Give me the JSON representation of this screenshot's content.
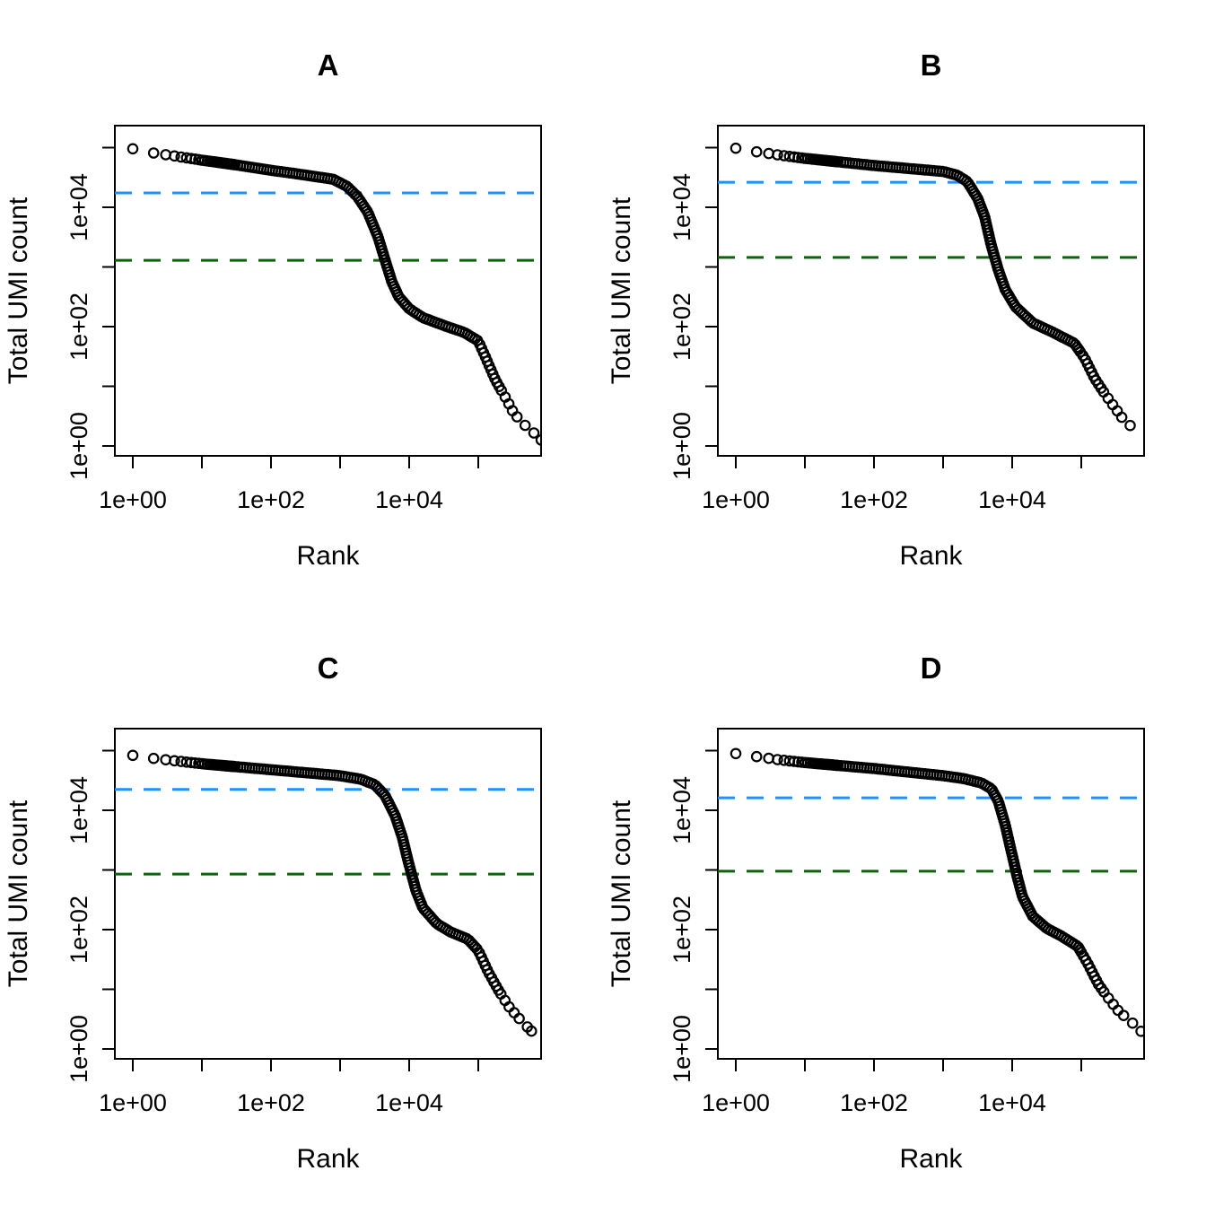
{
  "figure": {
    "background": "#FFFFFF",
    "marker": "open-circle",
    "marker_color": "#000000",
    "knee_color": "#1E90FF",
    "inflection_color": "#0B640B"
  },
  "chart_data": [
    {
      "type": "scatter",
      "title": "A",
      "xlabel": "Rank",
      "ylabel": "Total UMI count",
      "x_scale": "log10",
      "y_scale": "log10",
      "x_ticks": [
        1,
        10,
        100,
        1000,
        10000,
        100000
      ],
      "y_ticks": [
        1,
        10,
        100,
        1000,
        10000,
        100000
      ],
      "x_tick_labels": [
        "1e+00",
        "1e+02",
        "1e+04"
      ],
      "y_tick_labels": [
        "1e+00",
        "1e+02",
        "1e+04"
      ],
      "x_range_log10": [
        -0.26,
        5.91
      ],
      "y_range_log10": [
        -0.17,
        5.37
      ],
      "grid": false,
      "knee_line": {
        "style": "dashed",
        "color": "#1E90FF",
        "value": 17400
      },
      "inflection_line": {
        "style": "dashed",
        "color": "#0B640B",
        "value": 1290
      },
      "curve_log10_points": [
        [
          0,
          4.98
        ],
        [
          0.3,
          4.91
        ],
        [
          0.6,
          4.86
        ],
        [
          1,
          4.79
        ],
        [
          1.5,
          4.71
        ],
        [
          2,
          4.62
        ],
        [
          2.5,
          4.54
        ],
        [
          2.9,
          4.47
        ],
        [
          3.1,
          4.35
        ],
        [
          3.25,
          4.18
        ],
        [
          3.4,
          3.92
        ],
        [
          3.55,
          3.5
        ],
        [
          3.65,
          3.12
        ],
        [
          3.75,
          2.75
        ],
        [
          3.85,
          2.5
        ],
        [
          4,
          2.3
        ],
        [
          4.2,
          2.15
        ],
        [
          4.5,
          2.02
        ],
        [
          4.8,
          1.9
        ],
        [
          5,
          1.76
        ],
        [
          5.1,
          1.5
        ],
        [
          5.25,
          1.1
        ],
        [
          5.4,
          0.8
        ],
        [
          5.5,
          0.58
        ],
        [
          5.62,
          0.4
        ],
        [
          5.75,
          0.28
        ],
        [
          5.91,
          0.1
        ]
      ]
    },
    {
      "type": "scatter",
      "title": "B",
      "xlabel": "Rank",
      "ylabel": "Total UMI count",
      "x_scale": "log10",
      "y_scale": "log10",
      "x_ticks": [
        1,
        10,
        100,
        1000,
        10000,
        100000
      ],
      "y_ticks": [
        1,
        10,
        100,
        1000,
        10000,
        100000
      ],
      "x_tick_labels": [
        "1e+00",
        "1e+02",
        "1e+04"
      ],
      "y_tick_labels": [
        "1e+00",
        "1e+02",
        "1e+04"
      ],
      "x_range_log10": [
        -0.26,
        5.91
      ],
      "y_range_log10": [
        -0.17,
        5.37
      ],
      "grid": false,
      "knee_line": {
        "style": "dashed",
        "color": "#1E90FF",
        "value": 26300
      },
      "inflection_line": {
        "style": "dashed",
        "color": "#0B640B",
        "value": 1445
      },
      "curve_log10_points": [
        [
          0,
          4.99
        ],
        [
          0.3,
          4.93
        ],
        [
          0.6,
          4.88
        ],
        [
          1,
          4.82
        ],
        [
          1.5,
          4.76
        ],
        [
          2,
          4.7
        ],
        [
          2.5,
          4.65
        ],
        [
          3,
          4.6
        ],
        [
          3.2,
          4.54
        ],
        [
          3.35,
          4.43
        ],
        [
          3.5,
          4.15
        ],
        [
          3.6,
          3.85
        ],
        [
          3.7,
          3.35
        ],
        [
          3.8,
          2.95
        ],
        [
          3.9,
          2.62
        ],
        [
          4.05,
          2.33
        ],
        [
          4.3,
          2.06
        ],
        [
          4.6,
          1.9
        ],
        [
          4.9,
          1.72
        ],
        [
          5.05,
          1.47
        ],
        [
          5.2,
          1.12
        ],
        [
          5.35,
          0.86
        ],
        [
          5.5,
          0.62
        ],
        [
          5.6,
          0.46
        ],
        [
          5.72,
          0.33
        ]
      ]
    },
    {
      "type": "scatter",
      "title": "C",
      "xlabel": "Rank",
      "ylabel": "Total UMI count",
      "x_scale": "log10",
      "y_scale": "log10",
      "x_ticks": [
        1,
        10,
        100,
        1000,
        10000,
        100000
      ],
      "y_ticks": [
        1,
        10,
        100,
        1000,
        10000,
        100000
      ],
      "x_tick_labels": [
        "1e+00",
        "1e+02",
        "1e+04"
      ],
      "y_tick_labels": [
        "1e+00",
        "1e+02",
        "1e+04"
      ],
      "x_range_log10": [
        -0.26,
        5.91
      ],
      "y_range_log10": [
        -0.17,
        5.37
      ],
      "grid": false,
      "knee_line": {
        "style": "dashed",
        "color": "#1E90FF",
        "value": 22400
      },
      "inflection_line": {
        "style": "dashed",
        "color": "#0B640B",
        "value": 851
      },
      "curve_log10_points": [
        [
          0,
          4.92
        ],
        [
          0.3,
          4.87
        ],
        [
          0.6,
          4.83
        ],
        [
          1,
          4.78
        ],
        [
          1.5,
          4.73
        ],
        [
          2,
          4.68
        ],
        [
          2.5,
          4.63
        ],
        [
          3,
          4.58
        ],
        [
          3.3,
          4.52
        ],
        [
          3.5,
          4.43
        ],
        [
          3.65,
          4.25
        ],
        [
          3.8,
          3.9
        ],
        [
          3.9,
          3.55
        ],
        [
          4,
          3.08
        ],
        [
          4.1,
          2.65
        ],
        [
          4.2,
          2.36
        ],
        [
          4.4,
          2.1
        ],
        [
          4.6,
          1.96
        ],
        [
          4.85,
          1.84
        ],
        [
          5,
          1.65
        ],
        [
          5.15,
          1.28
        ],
        [
          5.3,
          0.97
        ],
        [
          5.45,
          0.7
        ],
        [
          5.6,
          0.5
        ],
        [
          5.77,
          0.3
        ]
      ]
    },
    {
      "type": "scatter",
      "title": "D",
      "xlabel": "Rank",
      "ylabel": "Total UMI count",
      "x_scale": "log10",
      "y_scale": "log10",
      "x_ticks": [
        1,
        10,
        100,
        1000,
        10000,
        100000
      ],
      "y_ticks": [
        1,
        10,
        100,
        1000,
        10000,
        100000
      ],
      "x_tick_labels": [
        "1e+00",
        "1e+02",
        "1e+04"
      ],
      "y_tick_labels": [
        "1e+00",
        "1e+02",
        "1e+04"
      ],
      "x_range_log10": [
        -0.26,
        5.91
      ],
      "y_range_log10": [
        -0.17,
        5.37
      ],
      "grid": false,
      "knee_line": {
        "style": "dashed",
        "color": "#1E90FF",
        "value": 16200
      },
      "inflection_line": {
        "style": "dashed",
        "color": "#0B640B",
        "value": 955
      },
      "curve_log10_points": [
        [
          0,
          4.95
        ],
        [
          0.3,
          4.9
        ],
        [
          0.6,
          4.85
        ],
        [
          1,
          4.8
        ],
        [
          1.5,
          4.75
        ],
        [
          2,
          4.7
        ],
        [
          2.5,
          4.64
        ],
        [
          3,
          4.58
        ],
        [
          3.3,
          4.53
        ],
        [
          3.55,
          4.46
        ],
        [
          3.7,
          4.36
        ],
        [
          3.8,
          4.15
        ],
        [
          3.9,
          3.75
        ],
        [
          4,
          3.25
        ],
        [
          4.07,
          2.9
        ],
        [
          4.15,
          2.55
        ],
        [
          4.3,
          2.22
        ],
        [
          4.5,
          2.02
        ],
        [
          4.7,
          1.9
        ],
        [
          4.95,
          1.72
        ],
        [
          5.1,
          1.42
        ],
        [
          5.25,
          1.08
        ],
        [
          5.4,
          0.84
        ],
        [
          5.55,
          0.62
        ],
        [
          5.7,
          0.48
        ],
        [
          5.88,
          0.28
        ]
      ]
    }
  ]
}
